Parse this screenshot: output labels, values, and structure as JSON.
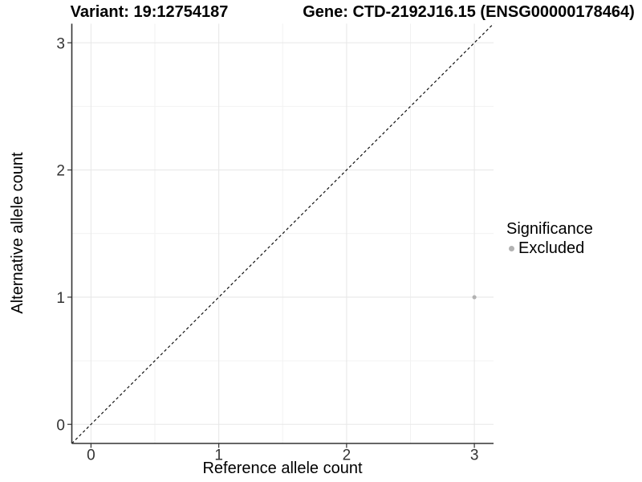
{
  "figure": {
    "background": "#ffffff",
    "title_left": "Variant: 19:12754187",
    "title_right": "Gene: CTD-2192J16.15 (ENSG00000178464)"
  },
  "legend": {
    "title": "Significance",
    "items": [
      {
        "label": "Excluded",
        "marker": "circle-icon",
        "color": "#b2b2b2"
      }
    ]
  },
  "chart_data": {
    "type": "scatter",
    "title": "Variant: 19:12754187",
    "subtitle": "Gene: CTD-2192J16.15 (ENSG00000178464)",
    "xlabel": "Reference allele count",
    "ylabel": "Alternative allele count",
    "xlim": [
      -0.15,
      3.15
    ],
    "ylim": [
      -0.15,
      3.15
    ],
    "xticks": [
      0,
      1,
      2,
      3
    ],
    "yticks": [
      0,
      1,
      2,
      3
    ],
    "minor_xticks": [
      0.5,
      1.5,
      2.5
    ],
    "minor_yticks": [
      0.5,
      1.5,
      2.5
    ],
    "grid": "major and minor, light gray on white",
    "legend_position": "right-center",
    "series": [
      {
        "name": "Excluded",
        "color": "#b2b2b2",
        "points": [
          {
            "x": 3,
            "y": 1
          }
        ]
      }
    ],
    "reference_line": {
      "type": "identity y=x",
      "style": "dashed",
      "color": "#000000",
      "from": [
        -0.15,
        -0.15
      ],
      "to": [
        3.15,
        3.15
      ]
    }
  },
  "style": {
    "grid_major_color": "#e8e8e8",
    "grid_minor_color": "#f2f2f2",
    "axis_color": "#333333",
    "tick_label_color": "#333333",
    "point_color": "#b2b2b2",
    "dash_color": "#111111"
  }
}
